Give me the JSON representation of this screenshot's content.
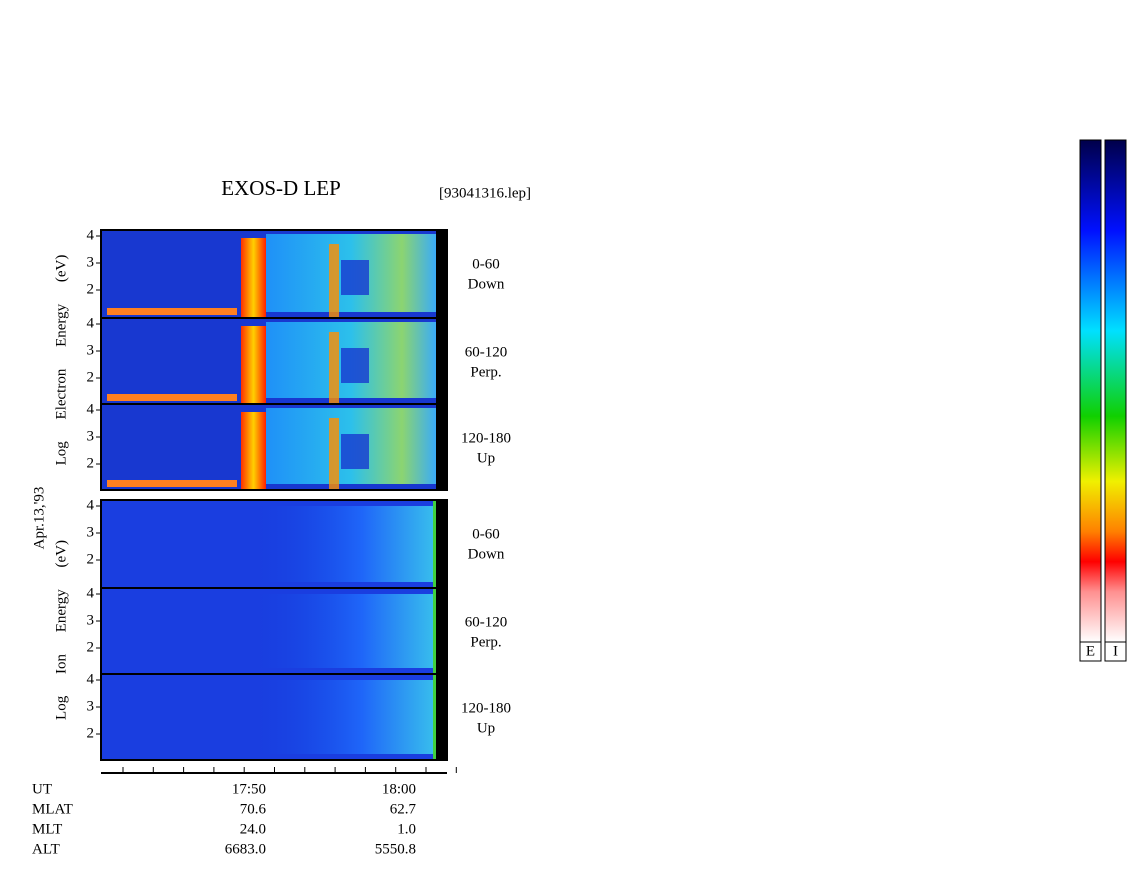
{
  "header": {
    "title": "EXOS-D LEP",
    "file": "[93041316.lep]"
  },
  "date": "Apr.13,'93",
  "groups": [
    {
      "axis_label": "Log Electron Energy (eV)",
      "panels": [
        {
          "yticks": [
            4,
            3,
            2
          ],
          "label": [
            "0-60",
            "Down"
          ]
        },
        {
          "yticks": [
            4,
            3,
            2
          ],
          "label": [
            "60-120",
            "Perp."
          ]
        },
        {
          "yticks": [
            4,
            3,
            2
          ],
          "label": [
            "120-180",
            "Up"
          ]
        }
      ]
    },
    {
      "axis_label": "Log Ion Energy (eV)",
      "panels": [
        {
          "yticks": [
            4,
            3,
            2
          ],
          "label": [
            "0-60",
            "Down"
          ]
        },
        {
          "yticks": [
            4,
            3,
            2
          ],
          "label": [
            "60-120",
            "Perp."
          ]
        },
        {
          "yticks": [
            4,
            3,
            2
          ],
          "label": [
            "120-180",
            "Up"
          ]
        }
      ]
    }
  ],
  "x_axis": {
    "rows": [
      {
        "name": "UT",
        "values": [
          "17:50",
          "18:00"
        ]
      },
      {
        "name": "MLAT",
        "values": [
          "70.6",
          "62.7"
        ]
      },
      {
        "name": "MLT",
        "values": [
          "24.0",
          "1.0"
        ]
      },
      {
        "name": "ALT",
        "values": [
          "6683.0",
          "5550.8"
        ]
      }
    ]
  },
  "colorbars": [
    "E",
    "I"
  ]
}
